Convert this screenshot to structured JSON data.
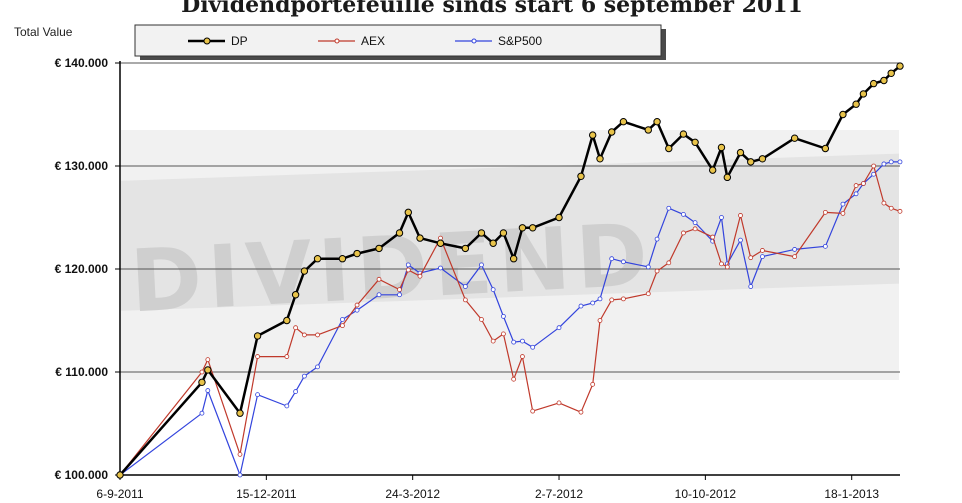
{
  "chart_data": {
    "type": "line",
    "title": "Dividendportefeuille sinds start 6 september 2011",
    "ylabel": "Total Value",
    "ylim": [
      100000,
      140000
    ],
    "yticks": [
      100000,
      110000,
      120000,
      130000,
      140000
    ],
    "ytick_labels": [
      "€ 100.000",
      "€ 110.000",
      "€ 120.000",
      "€ 130.000",
      "€ 140.000"
    ],
    "xlim": [
      "2011-09-06",
      "2013-02-20"
    ],
    "xticks": [
      "2011-09-06",
      "2011-12-15",
      "2012-03-24",
      "2012-07-02",
      "2012-10-10",
      "2013-01-18"
    ],
    "xtick_labels": [
      "6-9-2011",
      "15-12-2011",
      "24-3-2012",
      "2-7-2012",
      "10-10-2012",
      "18-1-2013"
    ],
    "grid": "horizontal",
    "legend_position": "top",
    "watermark": "DIVIDEND",
    "x": [
      "2011-09-06",
      "2011-11-01",
      "2011-11-05",
      "2011-11-27",
      "2011-12-09",
      "2011-12-29",
      "2012-01-04",
      "2012-01-10",
      "2012-01-19",
      "2012-02-05",
      "2012-02-15",
      "2012-03-01",
      "2012-03-15",
      "2012-03-21",
      "2012-03-29",
      "2012-04-12",
      "2012-04-29",
      "2012-05-10",
      "2012-05-18",
      "2012-05-25",
      "2012-06-01",
      "2012-06-07",
      "2012-06-14",
      "2012-07-02",
      "2012-07-17",
      "2012-07-25",
      "2012-07-30",
      "2012-08-07",
      "2012-08-15",
      "2012-09-01",
      "2012-09-07",
      "2012-09-15",
      "2012-09-25",
      "2012-10-03",
      "2012-10-15",
      "2012-10-21",
      "2012-10-25",
      "2012-11-03",
      "2012-11-10",
      "2012-11-18",
      "2012-12-10",
      "2012-12-31",
      "2013-01-12",
      "2013-01-21",
      "2013-01-26",
      "2013-02-02",
      "2013-02-09",
      "2013-02-14",
      "2013-02-20"
    ],
    "series": [
      {
        "name": "DP",
        "color": "#000000",
        "marker_color": "#e8c34a",
        "values": [
          100000,
          109000,
          110200,
          106000,
          113500,
          115000,
          117500,
          119800,
          121000,
          121000,
          121500,
          122000,
          123500,
          125500,
          123000,
          122500,
          122000,
          123500,
          122500,
          123500,
          121000,
          124000,
          124000,
          125000,
          129000,
          133000,
          130700,
          133300,
          134300,
          133500,
          134300,
          131700,
          133100,
          132300,
          129600,
          131800,
          128900,
          131300,
          130400,
          130700,
          132700,
          131700,
          135000,
          136000,
          137000,
          138000,
          138300,
          139000,
          139700
        ]
      },
      {
        "name": "AEX",
        "color": "#c0392b",
        "marker_color": "#ffffff",
        "values": [
          100000,
          110000,
          111200,
          102000,
          111500,
          111500,
          114300,
          113600,
          113600,
          114500,
          116500,
          119000,
          118000,
          119900,
          119300,
          123000,
          117000,
          115100,
          113000,
          113700,
          109300,
          111500,
          106200,
          107000,
          106100,
          108800,
          115000,
          117000,
          117100,
          117600,
          119800,
          120600,
          123500,
          123900,
          123100,
          120500,
          120200,
          125200,
          121100,
          121800,
          121200,
          125500,
          125400,
          128100,
          128300,
          130000,
          126400,
          125900,
          125600
        ]
      },
      {
        "name": "S&P500",
        "color": "#3344dd",
        "marker_color": "#ffffff",
        "values": [
          100000,
          106000,
          108200,
          100000,
          107800,
          106700,
          108100,
          109600,
          110500,
          115100,
          116000,
          117500,
          117500,
          120400,
          119600,
          120100,
          118300,
          120400,
          118000,
          115400,
          112900,
          113000,
          112400,
          114300,
          116400,
          116700,
          117100,
          121000,
          120700,
          120200,
          122900,
          125900,
          125300,
          124500,
          122700,
          125000,
          120500,
          122800,
          118300,
          121200,
          121900,
          122200,
          126300,
          127300,
          128300,
          129200,
          130200,
          130400,
          130400
        ]
      }
    ]
  }
}
